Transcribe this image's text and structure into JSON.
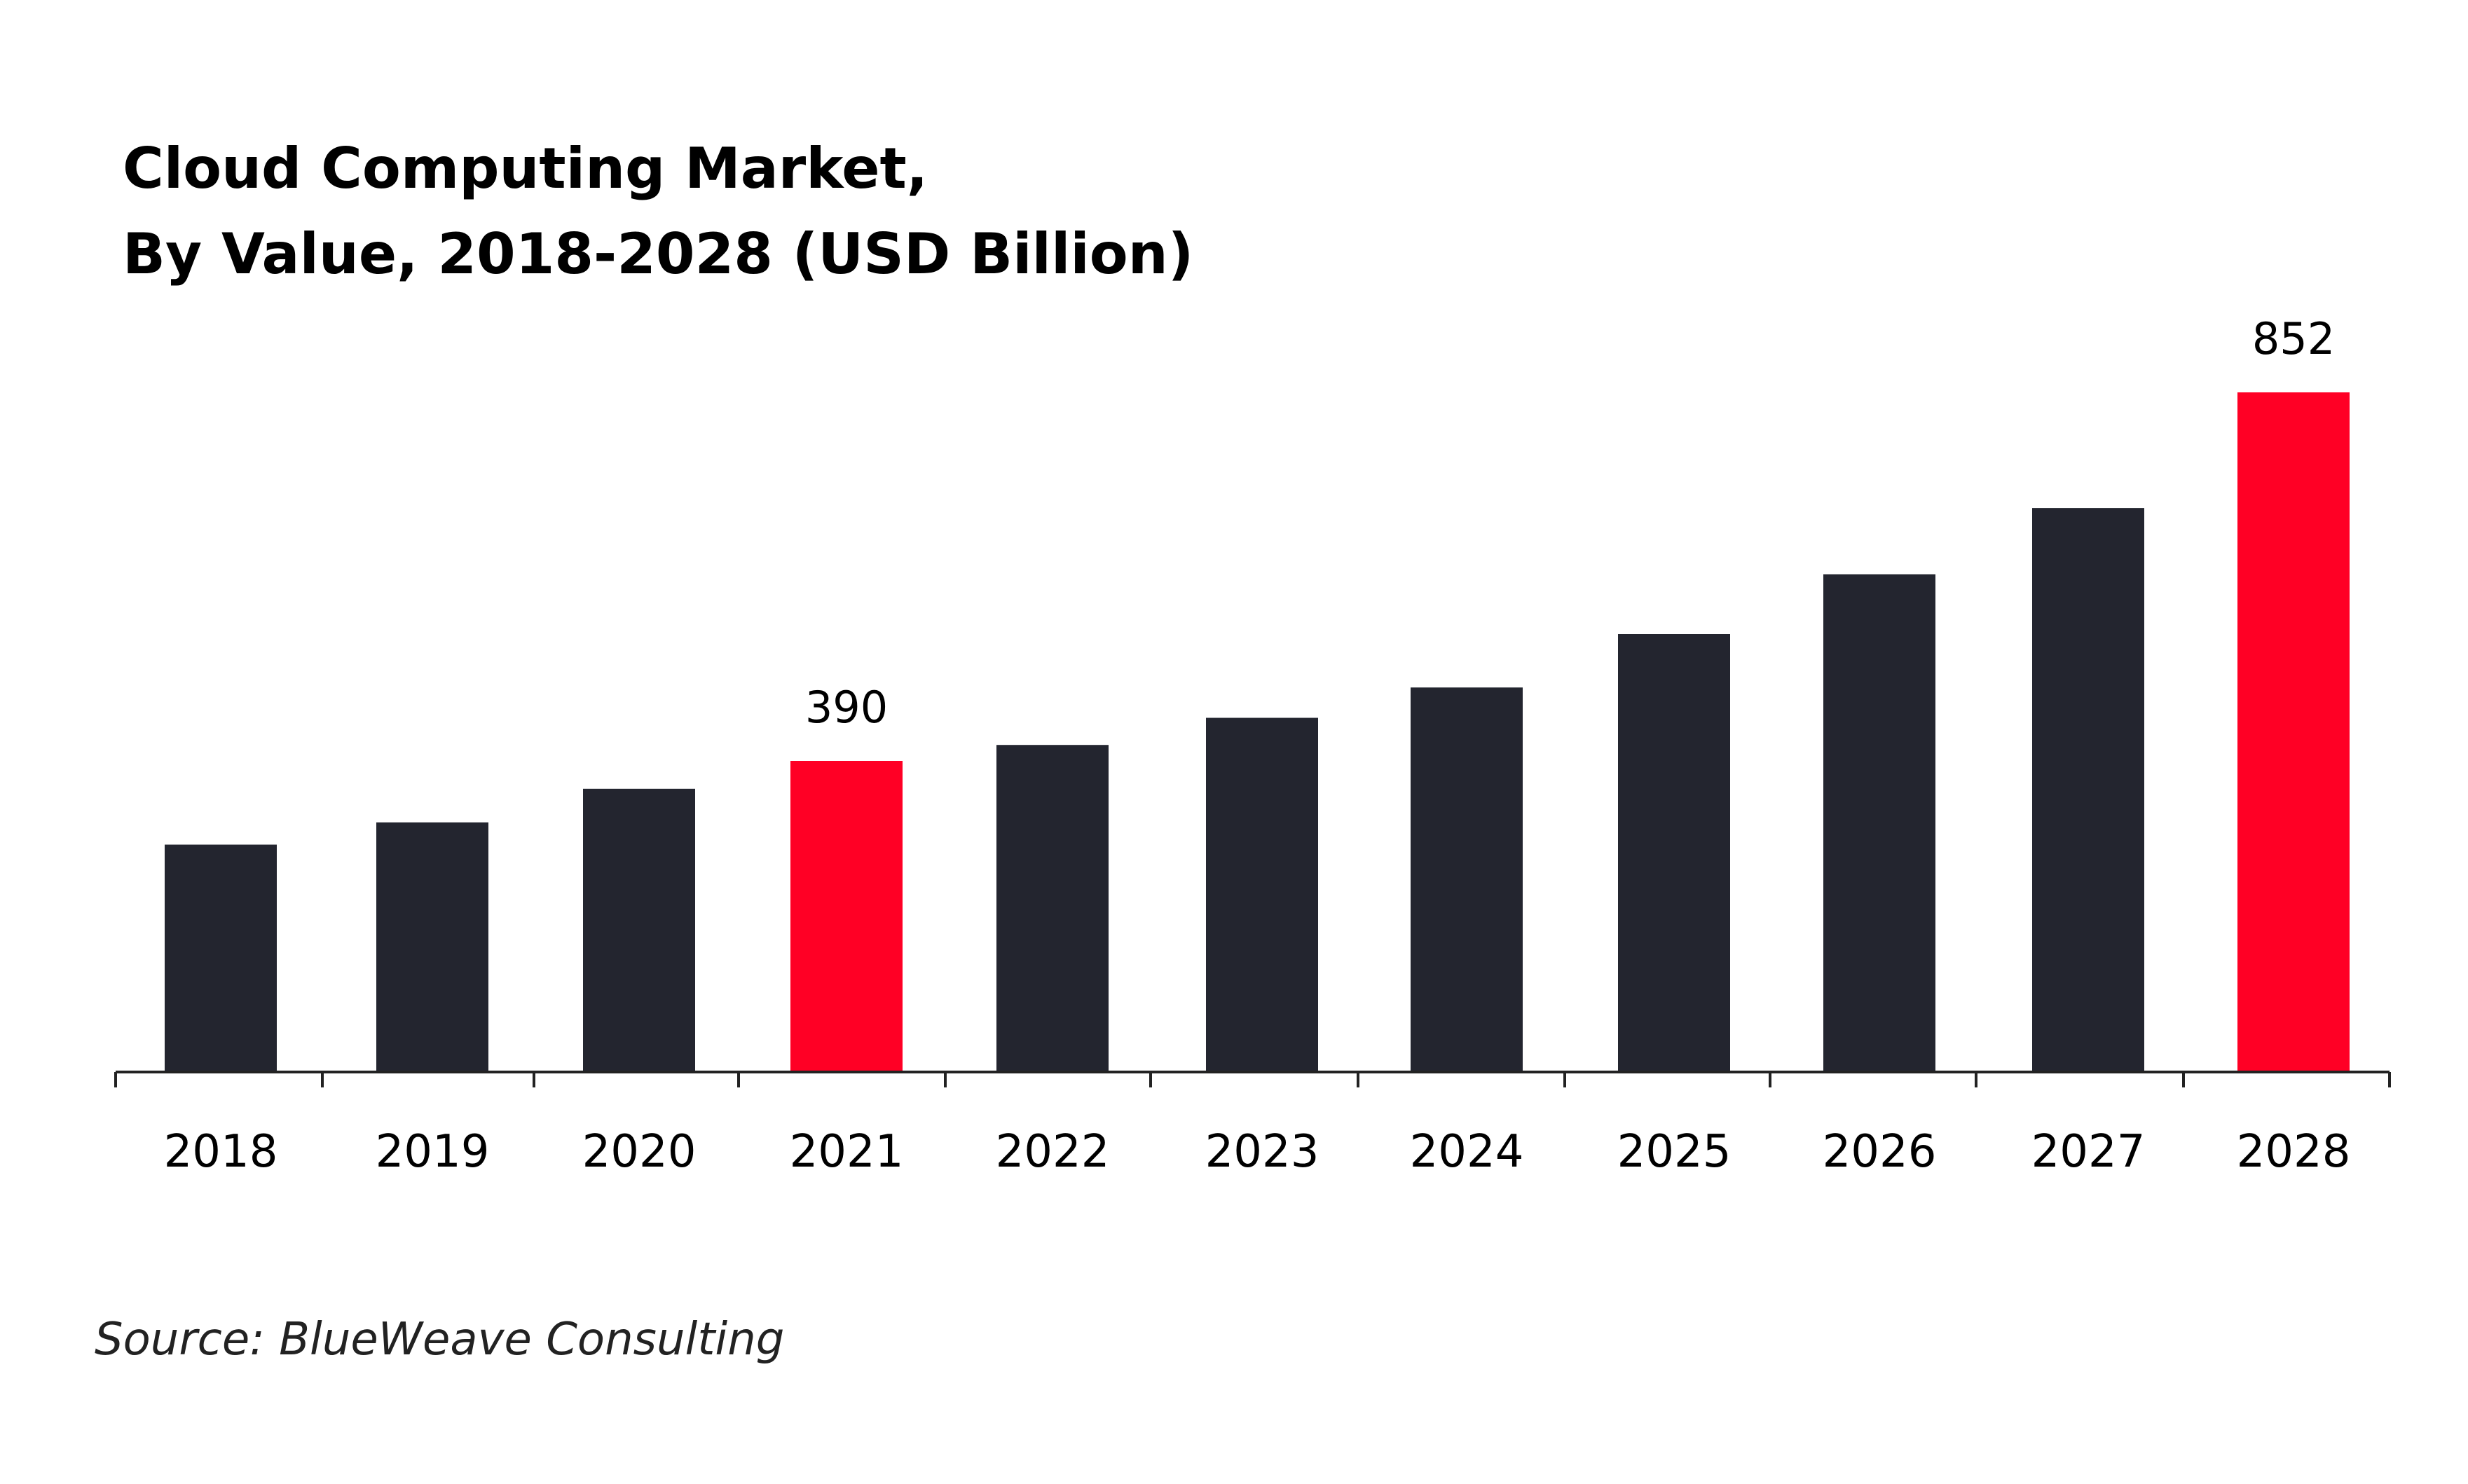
{
  "chart_data": {
    "type": "bar",
    "title_lines": [
      "Cloud Computing Market,",
      "By Value, 2018-2028 (USD Billion)"
    ],
    "categories": [
      "2018",
      "2019",
      "2020",
      "2021",
      "2022",
      "2023",
      "2024",
      "2025",
      "2026",
      "2027",
      "2028"
    ],
    "values": [
      285,
      313,
      355,
      390,
      410,
      444,
      482,
      549,
      624,
      707,
      852
    ],
    "data_labels": [
      {
        "category": "2021",
        "label": "390"
      },
      {
        "category": "2028",
        "label": "852"
      }
    ],
    "highlighted_categories": [
      "2021",
      "2028"
    ],
    "colors": {
      "bar": "#23252f",
      "highlight": "#ff0025",
      "axis": "#222222"
    },
    "ylim": [
      0,
      852
    ],
    "grid": false,
    "legend": "none"
  },
  "source": "Source: BlueWeave Consulting"
}
